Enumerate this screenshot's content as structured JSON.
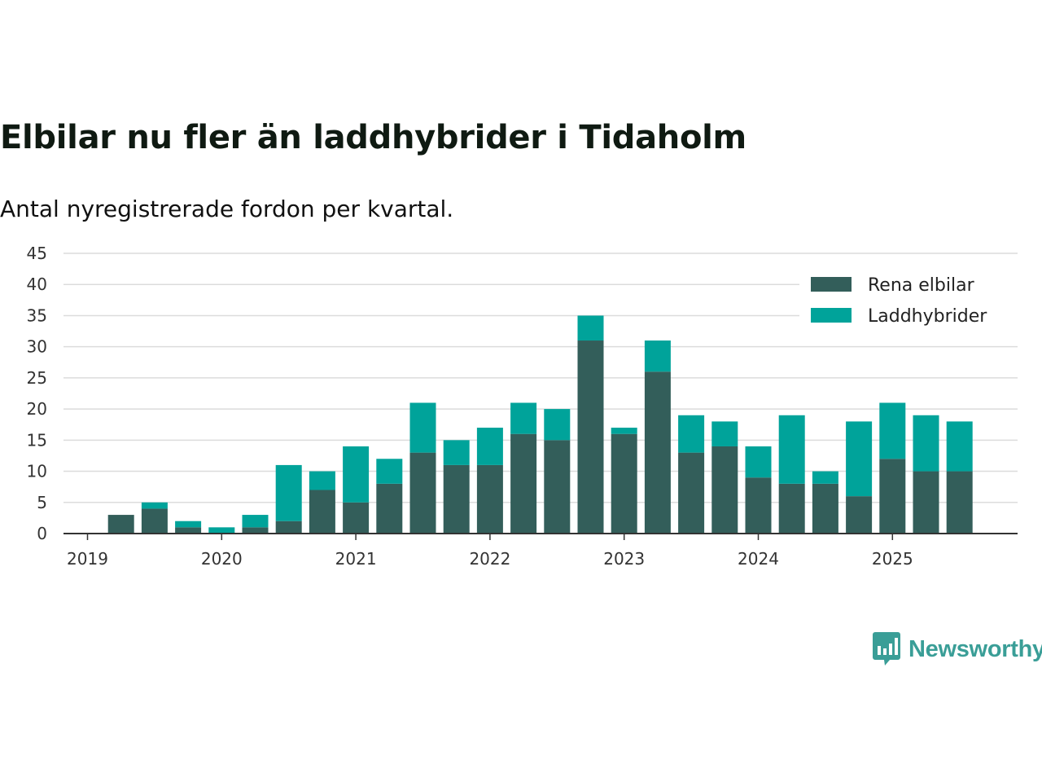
{
  "chart_data": {
    "type": "bar",
    "stacked": true,
    "title": "Elbilar nu fler än laddhybrider i Tidaholm",
    "subtitle": "Antal nyregistrerade fordon per kvartal.",
    "xlabel": "",
    "ylabel": "",
    "ylim": [
      0,
      45
    ],
    "yticks": [
      0,
      5,
      10,
      15,
      20,
      25,
      30,
      35,
      40,
      45
    ],
    "grid": true,
    "legend_position": "top-right",
    "x_tick_labels": [
      "2019",
      "2020",
      "2021",
      "2022",
      "2023",
      "2024",
      "2025"
    ],
    "categories": [
      "2019 Q1",
      "2019 Q2",
      "2019 Q3",
      "2019 Q4",
      "2020 Q1",
      "2020 Q2",
      "2020 Q3",
      "2020 Q4",
      "2021 Q1",
      "2021 Q2",
      "2021 Q3",
      "2021 Q4",
      "2022 Q1",
      "2022 Q2",
      "2022 Q3",
      "2022 Q4",
      "2023 Q1",
      "2023 Q2",
      "2023 Q3",
      "2023 Q4",
      "2024 Q1",
      "2024 Q2",
      "2024 Q3",
      "2024 Q4",
      "2025 Q1",
      "2025 Q2",
      "2025 Q3"
    ],
    "series": [
      {
        "name": "Rena elbilar",
        "color": "#335e5a",
        "values": [
          0,
          3,
          4,
          1,
          0,
          1,
          2,
          7,
          5,
          8,
          13,
          11,
          11,
          16,
          15,
          31,
          16,
          26,
          13,
          14,
          9,
          8,
          8,
          6,
          12,
          10,
          10
        ]
      },
      {
        "name": "Laddhybrider",
        "color": "#00a39a",
        "values": [
          0,
          0,
          1,
          1,
          1,
          2,
          9,
          3,
          9,
          4,
          8,
          4,
          6,
          5,
          5,
          4,
          1,
          5,
          6,
          4,
          5,
          11,
          2,
          12,
          9,
          9,
          8
        ]
      }
    ]
  },
  "branding": {
    "logo_text": "Newsworthy",
    "logo_color": "#3a9e97"
  }
}
